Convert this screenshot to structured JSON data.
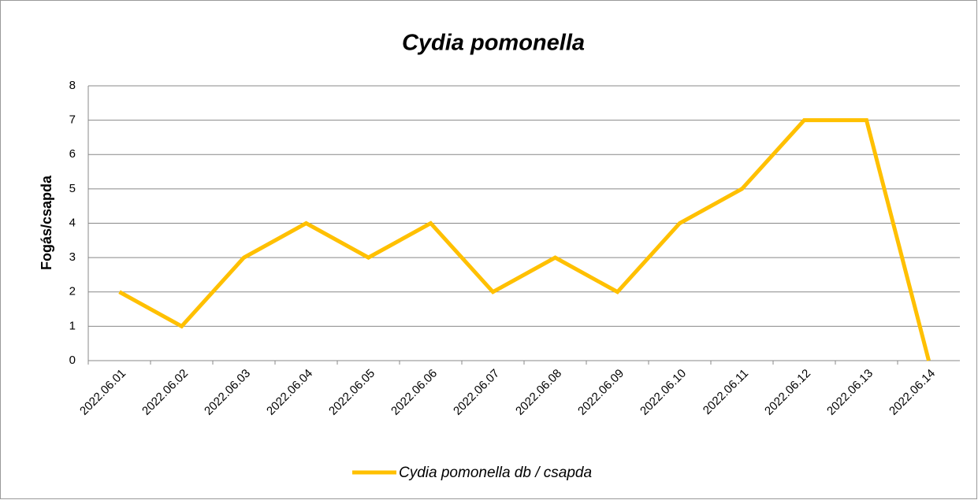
{
  "chart_data": {
    "type": "line",
    "title": "Cydia pomonella",
    "y_label": "Fogás/csapda",
    "categories": [
      "2022.06.01",
      "2022.06.02",
      "2022.06.03",
      "2022.06.04",
      "2022.06.05",
      "2022.06.06",
      "2022.06.07",
      "2022.06.08",
      "2022.06.09",
      "2022.06.10",
      "2022.06.11",
      "2022.06.12",
      "2022.06.13",
      "2022.06.14"
    ],
    "series": [
      {
        "name": "Cydia pomonella db / csapda",
        "color": "#FFC000",
        "values": [
          2,
          1,
          3,
          4,
          3,
          4,
          2,
          3,
          2,
          4,
          5,
          7,
          7,
          0
        ]
      }
    ],
    "ylim": [
      0,
      8
    ],
    "yticks": [
      0,
      1,
      2,
      3,
      4,
      5,
      6,
      7,
      8
    ],
    "grid": true,
    "legend": "bottom"
  }
}
